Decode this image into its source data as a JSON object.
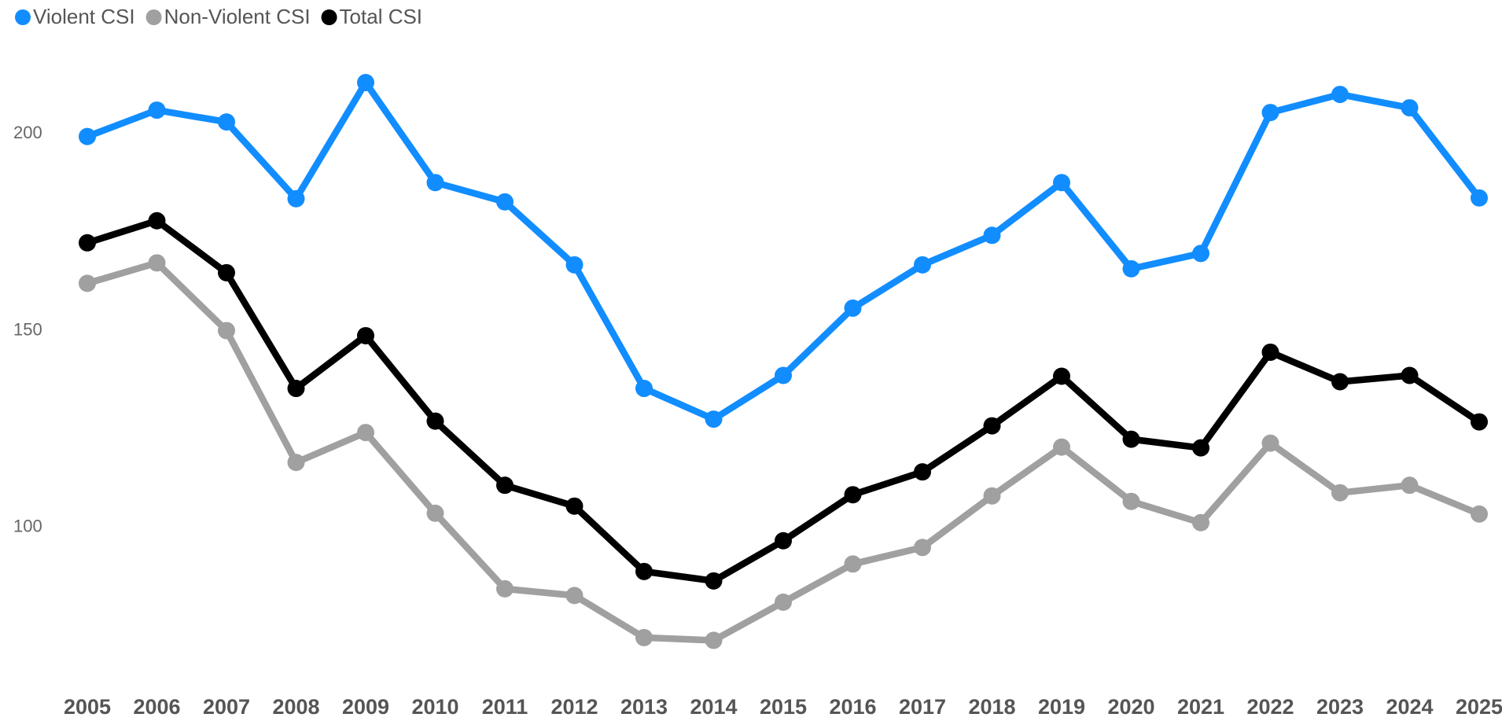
{
  "chart_data": {
    "type": "line",
    "x": [
      2005,
      2006,
      2007,
      2008,
      2009,
      2010,
      2011,
      2012,
      2013,
      2014,
      2015,
      2016,
      2017,
      2018,
      2019,
      2020,
      2021,
      2022,
      2023,
      2024,
      2025
    ],
    "series": [
      {
        "name": "Violent CSI",
        "color": "#118DFF",
        "values": [
          199.3,
          206,
          203,
          183.5,
          213,
          187.6,
          182.7,
          166.7,
          135.3,
          127.5,
          138.6,
          155.7,
          166.7,
          174.2,
          187.6,
          165.7,
          169.6,
          205.4,
          210,
          206.6,
          183.7
        ]
      },
      {
        "name": "Non-Violent CSI",
        "color": "#A0A0A0",
        "values": [
          162,
          167.2,
          150,
          116.5,
          124.1,
          103.6,
          84.4,
          82.7,
          72,
          71.3,
          81,
          90.7,
          94.9,
          108,
          120.4,
          106.6,
          101.2,
          121.4,
          108.8,
          110.7,
          103.4
        ]
      },
      {
        "name": "Total CSI",
        "color": "#000000",
        "values": [
          172.3,
          177.9,
          164.7,
          135.3,
          148.7,
          127,
          110.7,
          105.4,
          88.8,
          86.4,
          96.6,
          108.3,
          114.1,
          125.8,
          138.4,
          122.4,
          120.2,
          144.5,
          137,
          138.6,
          126.8
        ]
      }
    ],
    "ylim": [
      60,
      220
    ],
    "yticks": [
      100,
      150,
      200
    ],
    "xlim": [
      2005,
      2025
    ],
    "xticks": [
      2005,
      2006,
      2007,
      2008,
      2009,
      2010,
      2011,
      2012,
      2013,
      2014,
      2015,
      2016,
      2017,
      2018,
      2019,
      2020,
      2021,
      2022,
      2023,
      2024,
      2025
    ],
    "grid": false,
    "legend": "top-left"
  }
}
